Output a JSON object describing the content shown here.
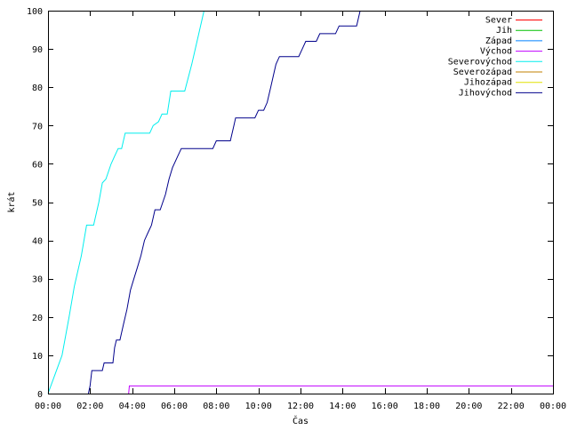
{
  "chart_data": {
    "type": "line",
    "title": "",
    "xlabel": "Čas",
    "ylabel": "krát",
    "xlim": [
      "00:00",
      "24:00"
    ],
    "ylim": [
      0,
      100
    ],
    "x_ticks": [
      "00:00",
      "02:00",
      "04:00",
      "06:00",
      "08:00",
      "10:00",
      "12:00",
      "14:00",
      "16:00",
      "18:00",
      "20:00",
      "22:00",
      "00:00"
    ],
    "y_ticks": [
      0,
      10,
      20,
      30,
      40,
      50,
      60,
      70,
      80,
      90,
      100
    ],
    "grid": false,
    "legend_position": "top-right",
    "series": [
      {
        "name": "Sever",
        "color": "#ff0000",
        "points": []
      },
      {
        "name": "Jih",
        "color": "#00c000",
        "points": []
      },
      {
        "name": "Západ",
        "color": "#0080ff",
        "points": []
      },
      {
        "name": "Východ",
        "color": "#c000ff",
        "points": [
          [
            "03:50",
            0
          ],
          [
            "03:52",
            2
          ],
          [
            "14:55",
            2
          ],
          [
            "24:00",
            2
          ]
        ]
      },
      {
        "name": "Severovýchod",
        "color": "#00eeee",
        "points": [
          [
            "00:00",
            0
          ],
          [
            "00:20",
            5
          ],
          [
            "00:40",
            10
          ],
          [
            "01:00",
            20
          ],
          [
            "01:15",
            28
          ],
          [
            "01:35",
            36
          ],
          [
            "01:50",
            44
          ],
          [
            "02:10",
            44
          ],
          [
            "02:25",
            50
          ],
          [
            "02:35",
            55
          ],
          [
            "02:45",
            56
          ],
          [
            "03:00",
            60
          ],
          [
            "03:10",
            62
          ],
          [
            "03:20",
            64
          ],
          [
            "03:30",
            64
          ],
          [
            "03:40",
            68
          ],
          [
            "04:50",
            68
          ],
          [
            "05:00",
            70
          ],
          [
            "05:15",
            71
          ],
          [
            "05:25",
            73
          ],
          [
            "05:40",
            73
          ],
          [
            "05:50",
            79
          ],
          [
            "06:30",
            79
          ],
          [
            "06:50",
            86
          ],
          [
            "07:10",
            94
          ],
          [
            "07:25",
            100
          ]
        ]
      },
      {
        "name": "Severozápad",
        "color": "#c08000",
        "points": []
      },
      {
        "name": "Jihozápad",
        "color": "#e0e000",
        "points": []
      },
      {
        "name": "Jihovýchod",
        "color": "#00008b",
        "points": [
          [
            "01:55",
            0
          ],
          [
            "02:00",
            2
          ],
          [
            "02:05",
            6
          ],
          [
            "02:35",
            6
          ],
          [
            "02:40",
            8
          ],
          [
            "03:05",
            8
          ],
          [
            "03:10",
            12
          ],
          [
            "03:15",
            14
          ],
          [
            "03:25",
            14
          ],
          [
            "03:35",
            18
          ],
          [
            "03:45",
            22
          ],
          [
            "03:55",
            27
          ],
          [
            "04:05",
            30
          ],
          [
            "04:15",
            33
          ],
          [
            "04:25",
            36
          ],
          [
            "04:35",
            40
          ],
          [
            "04:45",
            42
          ],
          [
            "04:55",
            44
          ],
          [
            "05:05",
            48
          ],
          [
            "05:20",
            48
          ],
          [
            "05:35",
            52
          ],
          [
            "05:45",
            56
          ],
          [
            "05:55",
            59
          ],
          [
            "06:10",
            62
          ],
          [
            "06:20",
            64
          ],
          [
            "07:50",
            64
          ],
          [
            "08:00",
            66
          ],
          [
            "08:40",
            66
          ],
          [
            "08:50",
            70
          ],
          [
            "08:55",
            72
          ],
          [
            "09:50",
            72
          ],
          [
            "10:00",
            74
          ],
          [
            "10:15",
            74
          ],
          [
            "10:25",
            76
          ],
          [
            "10:35",
            80
          ],
          [
            "10:45",
            84
          ],
          [
            "10:50",
            86
          ],
          [
            "11:00",
            88
          ],
          [
            "11:55",
            88
          ],
          [
            "12:05",
            90
          ],
          [
            "12:15",
            92
          ],
          [
            "12:45",
            92
          ],
          [
            "12:55",
            94
          ],
          [
            "13:40",
            94
          ],
          [
            "13:50",
            96
          ],
          [
            "14:40",
            96
          ],
          [
            "14:45",
            98
          ],
          [
            "14:50",
            100
          ]
        ]
      }
    ]
  }
}
